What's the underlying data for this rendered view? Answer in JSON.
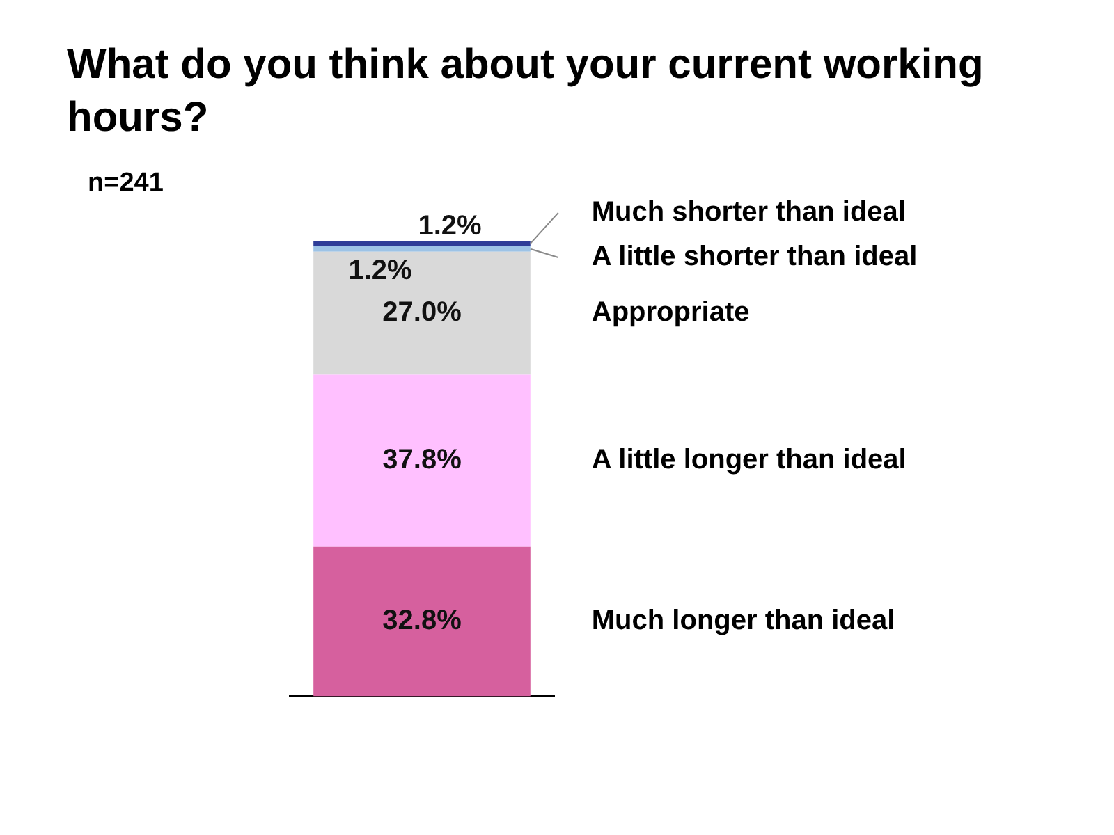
{
  "chart_data": {
    "type": "bar",
    "title": "What do you think about your current working hours?",
    "subtitle": "n=241",
    "categories": [
      null
    ],
    "stacked": true,
    "legend": false,
    "grid": false,
    "series": [
      {
        "name": "Much longer than ideal",
        "color": "#d6609e",
        "values": [
          32.8
        ],
        "value_labels": [
          "32.8%"
        ]
      },
      {
        "name": "A little longer than ideal",
        "color": "#ffc0ff",
        "values": [
          37.8
        ],
        "value_labels": [
          "37.8%"
        ]
      },
      {
        "name": "Appropriate",
        "color": "#d9d9d9",
        "values": [
          27.0
        ],
        "value_labels": [
          "27.0%"
        ]
      },
      {
        "name": "A little shorter than ideal",
        "color": "#9dc3e6",
        "values": [
          1.2
        ],
        "value_labels": [
          "1.2%"
        ]
      },
      {
        "name": "Much shorter than ideal",
        "color": "#2e3d98",
        "values": [
          1.2
        ],
        "value_labels": [
          "1.2%"
        ]
      }
    ]
  }
}
